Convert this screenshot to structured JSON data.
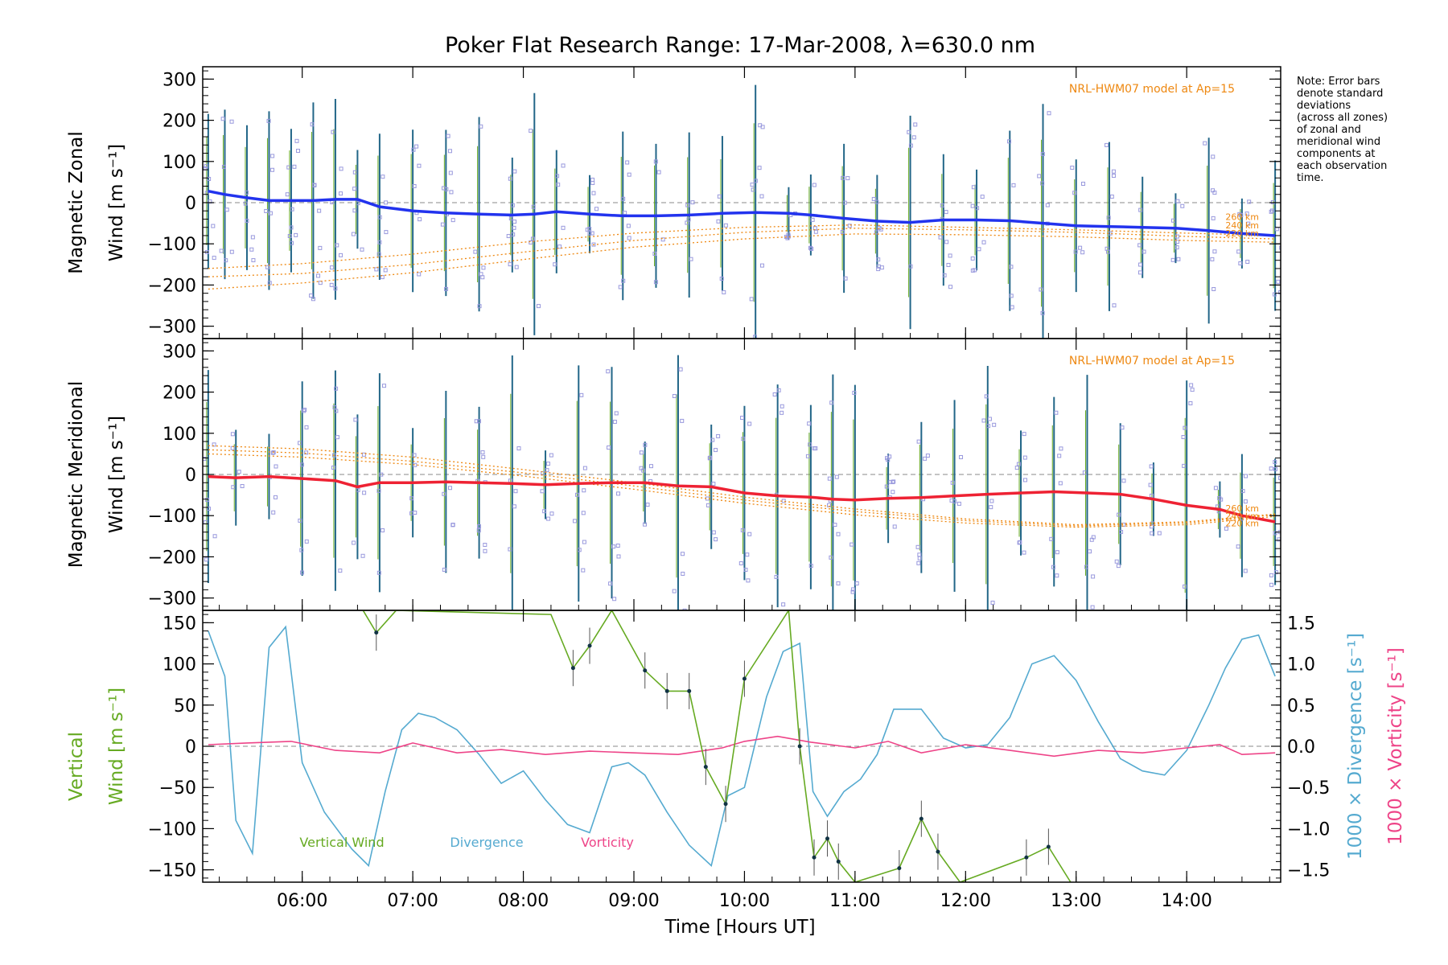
{
  "title": "Poker Flat Research Range: 17-Mar-2008, λ=630.0 nm",
  "note": [
    "Note: Error bars",
    "denote standard",
    "deviations",
    "(across all zones)",
    "of zonal and",
    "meridional wind",
    "components at",
    "each observation",
    "time."
  ],
  "colors": {
    "zonal": "#2233ee",
    "meridional": "#ee2233",
    "vertical": "#66aa22",
    "divergence": "#55aad0",
    "vorticity": "#ee4488",
    "model": "#ee8811",
    "scatter": "#9999dd",
    "errbar": "#226688"
  },
  "chart_data": [
    {
      "type": "line",
      "panel": "zonal",
      "ylabel_lines": [
        "Magnetic Zonal",
        "Wind [m s⁻¹]"
      ],
      "ylim": [
        -330,
        330
      ],
      "yticks": [
        "300",
        "200",
        "100",
        "0",
        "−100",
        "−200",
        "−300"
      ],
      "ytick_values": [
        300,
        200,
        100,
        0,
        -100,
        -200,
        -300
      ],
      "model_label": "NRL-HWM07 model at Ap=15",
      "model_alt_labels": [
        "260 km",
        "240 km",
        "220 km"
      ],
      "series": [
        {
          "x": [
            5.15,
            5.3,
            5.5,
            5.7,
            5.9,
            6.1,
            6.3,
            6.5,
            6.7,
            7.0,
            7.3,
            7.6,
            7.9,
            8.1,
            8.3,
            8.6,
            8.9,
            9.2,
            9.5,
            9.8,
            10.1,
            10.4,
            10.6,
            10.9,
            11.2,
            11.5,
            11.8,
            12.1,
            12.4,
            12.7,
            13.0,
            13.3,
            13.6,
            13.9,
            14.2,
            14.5,
            14.8
          ],
          "y": [
            28,
            20,
            12,
            5,
            5,
            5,
            8,
            8,
            -10,
            -20,
            -25,
            -28,
            -30,
            -28,
            -22,
            -28,
            -32,
            -32,
            -30,
            -26,
            -24,
            -26,
            -30,
            -38,
            -45,
            -48,
            -42,
            -42,
            -44,
            -50,
            -56,
            -58,
            -60,
            -62,
            -68,
            -75,
            -80
          ]
        }
      ],
      "model_series": [
        {
          "x": [
            5.15,
            6,
            7,
            8,
            9,
            10,
            11,
            12,
            13,
            14,
            14.8
          ],
          "y": [
            -180,
            -172,
            -150,
            -120,
            -92,
            -72,
            -62,
            -66,
            -72,
            -82,
            -88
          ]
        },
        {
          "x": [
            5.15,
            6,
            7,
            8,
            9,
            10,
            11,
            12,
            13,
            14,
            14.8
          ],
          "y": [
            -210,
            -195,
            -170,
            -138,
            -108,
            -88,
            -76,
            -78,
            -83,
            -92,
            -96
          ]
        },
        {
          "x": [
            5.15,
            6,
            7,
            8,
            9,
            10,
            11,
            12,
            13,
            14,
            14.8
          ],
          "y": [
            -160,
            -148,
            -125,
            -96,
            -74,
            -60,
            -54,
            -60,
            -66,
            -74,
            -80
          ]
        }
      ]
    },
    {
      "type": "line",
      "panel": "meridional",
      "ylabel_lines": [
        "Magnetic Meridional",
        "Wind [m s⁻¹]"
      ],
      "ylim": [
        -330,
        330
      ],
      "yticks": [
        "300",
        "200",
        "100",
        "0",
        "−100",
        "−200",
        "−300"
      ],
      "ytick_values": [
        300,
        200,
        100,
        0,
        -100,
        -200,
        -300
      ],
      "model_label": "NRL-HWM07 model at Ap=15",
      "model_alt_labels": [
        "260 km",
        "240 km",
        "220 km"
      ],
      "series": [
        {
          "x": [
            5.15,
            5.4,
            5.7,
            6.0,
            6.3,
            6.5,
            6.7,
            7.0,
            7.3,
            7.6,
            7.9,
            8.2,
            8.5,
            8.8,
            9.1,
            9.4,
            9.7,
            10.0,
            10.3,
            10.6,
            10.8,
            11.0,
            11.3,
            11.6,
            11.9,
            12.2,
            12.5,
            12.8,
            13.1,
            13.4,
            13.7,
            14.0,
            14.3,
            14.5,
            14.8
          ],
          "y": [
            -5,
            -8,
            -5,
            -10,
            -15,
            -30,
            -20,
            -20,
            -18,
            -20,
            -22,
            -25,
            -22,
            -20,
            -20,
            -28,
            -30,
            -45,
            -52,
            -55,
            -60,
            -62,
            -58,
            -56,
            -52,
            -48,
            -45,
            -42,
            -45,
            -48,
            -60,
            -75,
            -85,
            -100,
            -115
          ]
        }
      ],
      "model_series": [
        {
          "x": [
            5.15,
            6,
            7,
            8,
            9,
            10,
            11,
            12,
            13,
            14,
            14.8
          ],
          "y": [
            60,
            52,
            32,
            4,
            -28,
            -62,
            -90,
            -112,
            -125,
            -118,
            -98
          ]
        },
        {
          "x": [
            5.15,
            6,
            7,
            8,
            9,
            10,
            11,
            12,
            13,
            14,
            14.8
          ],
          "y": [
            70,
            62,
            42,
            12,
            -20,
            -55,
            -84,
            -108,
            -122,
            -115,
            -96
          ]
        },
        {
          "x": [
            5.15,
            6,
            7,
            8,
            9,
            10,
            11,
            12,
            13,
            14,
            14.8
          ],
          "y": [
            50,
            42,
            24,
            -4,
            -36,
            -70,
            -98,
            -118,
            -128,
            -122,
            -102
          ]
        }
      ]
    },
    {
      "type": "line",
      "panel": "vertical",
      "ylabel_lines": [
        "Vertical",
        "Wind [m s⁻¹]"
      ],
      "ylim": [
        -165,
        165
      ],
      "yticks": [
        "150",
        "100",
        "50",
        "0",
        "−50",
        "−100",
        "−150"
      ],
      "ytick_values": [
        150,
        100,
        50,
        0,
        -50,
        -100,
        -150
      ],
      "y2label": "1000 × Divergence [s⁻¹]",
      "y3label": "1000 × Vorticity [s⁻¹]",
      "y2lim": [
        -1.65,
        1.65
      ],
      "y2ticks": [
        "1.5",
        "1.0",
        "0.5",
        "0.0",
        "−0.5",
        "−1.0",
        "−1.5"
      ],
      "y2tick_values": [
        1.5,
        1.0,
        0.5,
        0.0,
        -0.5,
        -1.0,
        -1.5
      ],
      "legend": [
        "Vertical Wind",
        "Divergence",
        "Vorticity"
      ],
      "series": [
        {
          "name": "Vertical Wind",
          "x": [
            6.55,
            6.67,
            6.85,
            8.25,
            8.45,
            8.6,
            8.8,
            9.1,
            9.3,
            9.5,
            9.65,
            9.83,
            10.0,
            10.4,
            10.5,
            10.63,
            10.75,
            10.85,
            11.0,
            11.4,
            11.6,
            11.75,
            11.95,
            12.55,
            12.75,
            12.95
          ],
          "y": [
            165,
            138,
            165,
            160,
            95,
            122,
            165,
            92,
            67,
            67,
            -25,
            -70,
            82,
            165,
            0,
            -135,
            -112,
            -140,
            -165,
            -148,
            -88,
            -128,
            -165,
            -135,
            -122,
            -165
          ]
        },
        {
          "name": "Divergence",
          "x": [
            5.15,
            5.3,
            5.4,
            5.55,
            5.7,
            5.85,
            6.0,
            6.2,
            6.45,
            6.6,
            6.75,
            6.9,
            7.05,
            7.2,
            7.4,
            7.6,
            7.8,
            8.0,
            8.2,
            8.4,
            8.6,
            8.8,
            8.95,
            9.1,
            9.3,
            9.5,
            9.7,
            9.85,
            10.0,
            10.2,
            10.35,
            10.5,
            10.62,
            10.75,
            10.9,
            11.05,
            11.2,
            11.35,
            11.6,
            11.8,
            12.0,
            12.2,
            12.4,
            12.6,
            12.8,
            13.0,
            13.2,
            13.4,
            13.6,
            13.8,
            14.0,
            14.2,
            14.35,
            14.5,
            14.65,
            14.8
          ],
          "y": [
            1.4,
            0.85,
            -0.9,
            -1.3,
            1.2,
            1.45,
            -0.2,
            -0.8,
            -1.25,
            -1.45,
            -0.55,
            0.2,
            0.4,
            0.35,
            0.2,
            -0.1,
            -0.45,
            -0.3,
            -0.65,
            -0.95,
            -1.05,
            -0.25,
            -0.2,
            -0.35,
            -0.8,
            -1.2,
            -1.45,
            -0.6,
            -0.5,
            0.6,
            1.15,
            1.25,
            -0.55,
            -0.85,
            -0.55,
            -0.4,
            -0.1,
            0.45,
            0.45,
            0.1,
            -0.02,
            0.02,
            0.35,
            1.0,
            1.1,
            0.8,
            0.3,
            -0.15,
            -0.3,
            -0.35,
            -0.05,
            0.5,
            0.95,
            1.3,
            1.35,
            0.85
          ]
        },
        {
          "name": "Vorticity",
          "x": [
            5.15,
            5.5,
            5.9,
            6.3,
            6.7,
            7.0,
            7.4,
            7.8,
            8.2,
            8.6,
            9.0,
            9.4,
            9.8,
            10.0,
            10.3,
            10.6,
            11.0,
            11.3,
            11.6,
            12.0,
            12.4,
            12.8,
            13.2,
            13.6,
            14.0,
            14.3,
            14.5,
            14.8
          ],
          "y": [
            0.02,
            0.04,
            0.06,
            -0.05,
            -0.08,
            0.04,
            -0.08,
            -0.04,
            -0.1,
            -0.06,
            -0.08,
            -0.1,
            -0.02,
            0.06,
            0.12,
            0.05,
            -0.02,
            0.06,
            -0.08,
            0.02,
            -0.05,
            -0.12,
            -0.05,
            -0.08,
            -0.02,
            0.02,
            -0.1,
            -0.08
          ]
        }
      ]
    }
  ],
  "x_axis": {
    "xlim": [
      5.1,
      14.85
    ],
    "xlabel": "Time [Hours UT]",
    "tick_values": [
      6,
      7,
      8,
      9,
      10,
      11,
      12,
      13,
      14
    ],
    "tick_labels": [
      "06:00",
      "07:00",
      "08:00",
      "09:00",
      "10:00",
      "11:00",
      "12:00",
      "13:00",
      "14:00"
    ]
  }
}
